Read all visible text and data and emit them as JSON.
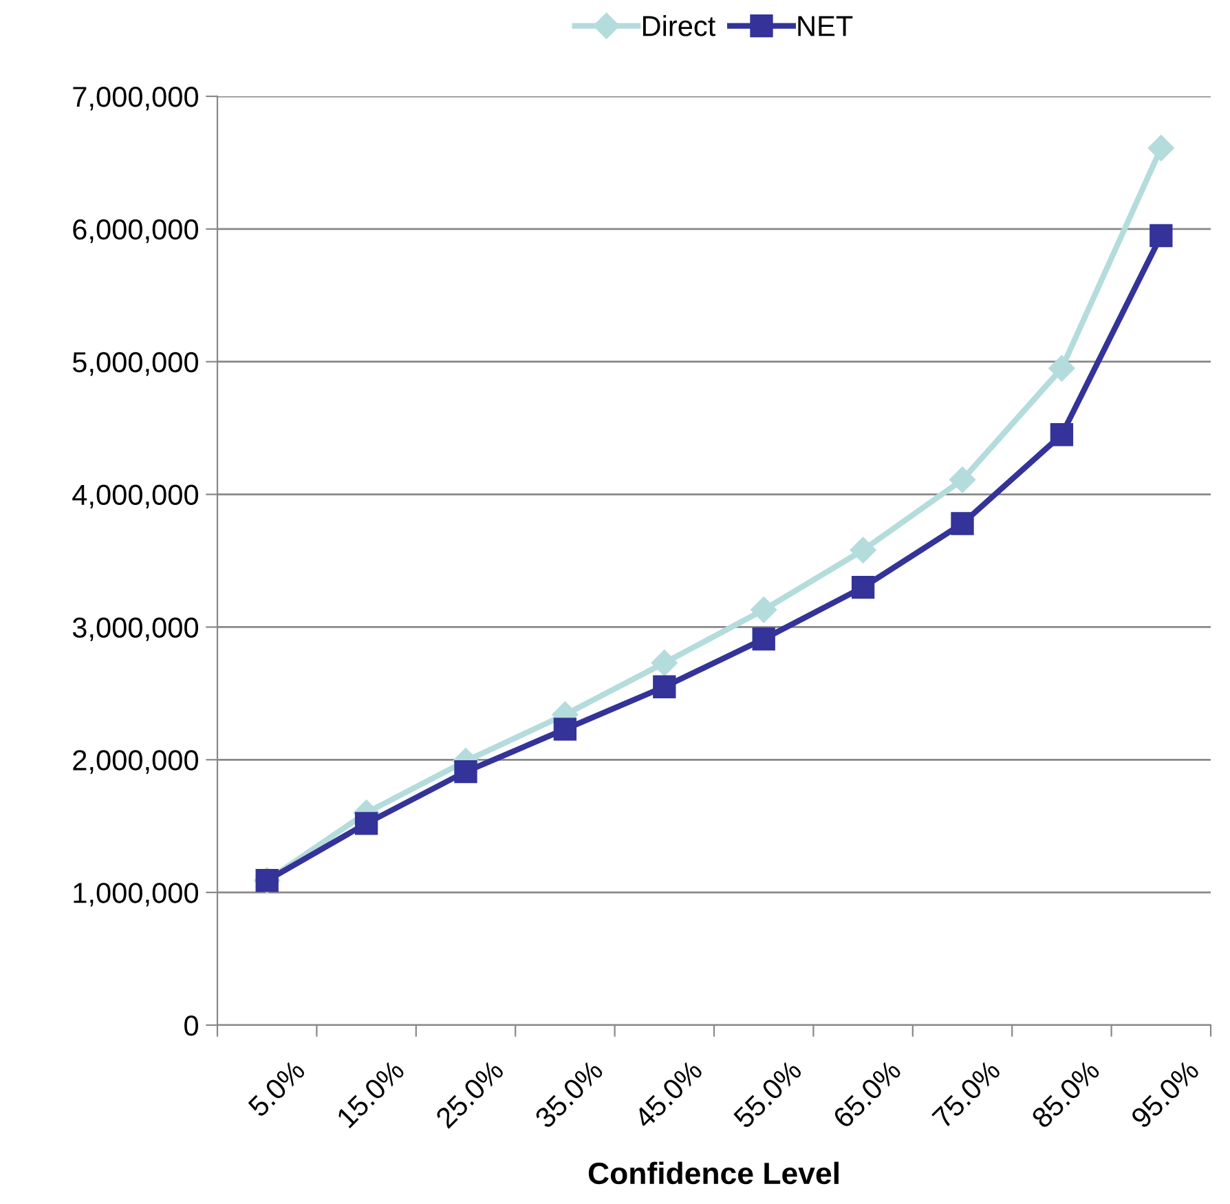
{
  "chart_data": {
    "type": "line",
    "xlabel": "Confidence Level",
    "categories": [
      "5.0%",
      "15.0%",
      "25.0%",
      "35.0%",
      "45.0%",
      "55.0%",
      "65.0%",
      "75.0%",
      "85.0%",
      "95.0%"
    ],
    "series": [
      {
        "name": "Direct",
        "color": "#b4dcdc",
        "marker": "diamond",
        "values": [
          1090000,
          1600000,
          1990000,
          2340000,
          2730000,
          3130000,
          3580000,
          4110000,
          4950000,
          6610000
        ]
      },
      {
        "name": "NET",
        "color": "#333399",
        "marker": "square",
        "values": [
          1090000,
          1520000,
          1910000,
          2230000,
          2550000,
          2910000,
          3300000,
          3780000,
          4450000,
          5950000
        ]
      }
    ],
    "ylim": [
      0,
      7000000
    ],
    "yticks": [
      0,
      {
        "value": 1000000,
        "label": "1,000,000"
      },
      {
        "value": 2000000,
        "label": "2,000,000"
      },
      {
        "value": 3000000,
        "label": "3,000,000"
      },
      {
        "value": 4000000,
        "label": "4,000,000"
      },
      {
        "value": 5000000,
        "label": "5,000,000"
      },
      {
        "value": 6000000,
        "label": "6,000,000"
      },
      {
        "value": 7000000,
        "label": "7,000,000"
      }
    ],
    "grid": "y",
    "legend": "top",
    "line_style": "solid"
  }
}
